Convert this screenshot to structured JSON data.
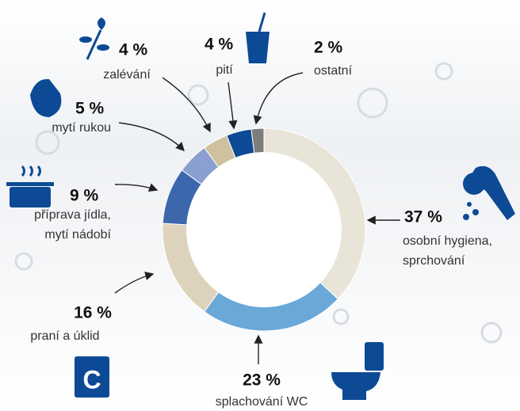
{
  "chart_data": {
    "type": "donut",
    "categories": [
      [
        "osobní hygiena,",
        "sprchování"
      ],
      [
        "splachování WC"
      ],
      [
        "praní a úklid"
      ],
      [
        "příprava jídla,",
        "mytí nádobí"
      ],
      [
        "mytí rukou"
      ],
      [
        "zalévání"
      ],
      [
        "pití"
      ],
      [
        "ostatní"
      ]
    ],
    "values": [
      37,
      23,
      16,
      9,
      5,
      4,
      4,
      2
    ],
    "value_labels": [
      "37 %",
      "23 %",
      "16 %",
      "9 %",
      "5 %",
      "4 %",
      "4 %",
      "2 %"
    ],
    "colors": [
      "#e9e4d8",
      "#6aa8d8",
      "#ddd3bd",
      "#3d67ad",
      "#8b9fd0",
      "#cfc09f",
      "#0d4a96",
      "#7c7c7c"
    ]
  }
}
